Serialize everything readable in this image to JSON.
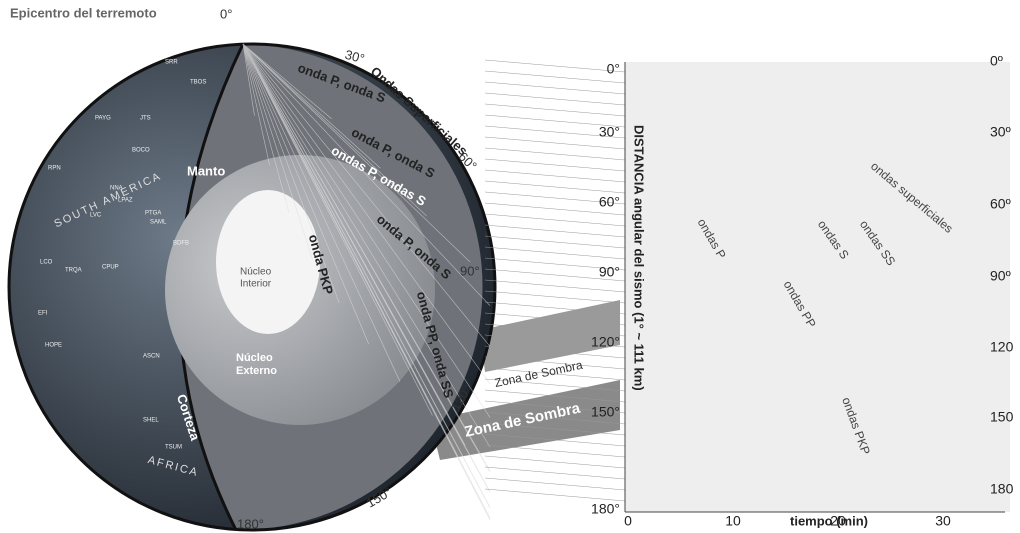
{
  "header": {
    "epicenter": "Epicentro del terremoto",
    "epicenter_angle": "0°"
  },
  "globe": {
    "angles": [
      "30°",
      "60°",
      "90°",
      "120°",
      "150°",
      "180°"
    ],
    "mantle": "Manto",
    "crust": "Corteza",
    "inner_core": [
      "Núcleo",
      "Interior"
    ],
    "outer_core": [
      "Núcleo",
      "Externo"
    ],
    "waves": [
      "onda P, onda S",
      "Ondas Superficiales",
      "onda P, onda S",
      "ondas P,  ondas  S",
      "onda P, onda S",
      "onda PKP",
      "onda PP, onda SS"
    ],
    "shadow_zones": [
      "Zona de Sombra",
      "Zona de Sombra"
    ],
    "continents": [
      "SOUTH AMERICA",
      "AFRICA"
    ],
    "stations": [
      "SRR",
      "TBOS",
      "PAYG",
      "JTS",
      "BOCO",
      "RPN",
      "NNA",
      "LPAZ",
      "PTGA",
      "SAML",
      "LVC",
      "BDFB",
      "LCO",
      "TRQA",
      "CPUP",
      "EFI",
      "HOPE",
      "ASCN",
      "SHEL",
      "TSUM"
    ]
  },
  "seismogram": {
    "y_axis_label": "DISTANCIA angular del sismo (1° ~ 111 km)",
    "left_ticks": [
      "0°",
      "30°",
      "60°",
      "90°",
      "120°",
      "150°",
      "180°"
    ],
    "right_ticks": [
      "0º",
      "30º",
      "60º",
      "90º",
      "120",
      "150",
      "180"
    ],
    "x_ticks": [
      "0",
      "10",
      "20",
      "30"
    ],
    "x_axis_label": "tiempo (min)",
    "phases": [
      "ondas P",
      "ondas superficiales",
      "ondas S",
      "ondas SS",
      "ondas PP",
      "ondas PKP"
    ]
  }
}
